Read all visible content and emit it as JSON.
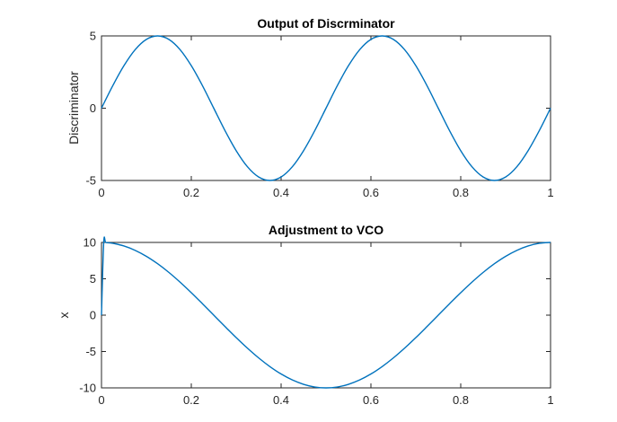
{
  "chart_data": [
    {
      "type": "line",
      "title": "Output of Discrminator",
      "xlabel": "",
      "ylabel": "Discriminator",
      "xlim": [
        0,
        1
      ],
      "ylim": [
        -5,
        5
      ],
      "xticks": [
        "0",
        "0.2",
        "0.4",
        "0.6",
        "0.8",
        "1"
      ],
      "yticks": [
        "-5",
        "0",
        "5"
      ],
      "xtick_values": [
        0,
        0.2,
        0.4,
        0.6,
        0.8,
        1
      ],
      "ytick_values": [
        -5,
        0,
        5
      ],
      "grid": false,
      "color": "#0072bd",
      "series": [
        {
          "x": [
            0,
            0.025,
            0.05,
            0.075,
            0.1,
            0.125,
            0.15,
            0.175,
            0.2,
            0.225,
            0.25,
            0.275,
            0.3,
            0.325,
            0.35,
            0.375,
            0.4,
            0.425,
            0.45,
            0.475,
            0.5,
            0.525,
            0.55,
            0.575,
            0.6,
            0.625,
            0.65,
            0.675,
            0.7,
            0.725,
            0.75,
            0.775,
            0.8,
            0.825,
            0.85,
            0.875,
            0.9,
            0.925,
            0.95,
            0.975,
            1
          ],
          "values": [
            0,
            1.55,
            2.94,
            4.05,
            4.76,
            5,
            4.76,
            4.05,
            2.94,
            1.55,
            0,
            -1.55,
            -2.94,
            -4.05,
            -4.76,
            -5,
            -4.76,
            -4.05,
            -2.94,
            -1.55,
            0,
            1.55,
            2.94,
            4.05,
            4.76,
            5,
            4.76,
            4.05,
            2.94,
            1.55,
            0,
            -1.55,
            -2.94,
            -4.05,
            -4.76,
            -5,
            -4.76,
            -4.05,
            -2.94,
            -1.55,
            0
          ]
        }
      ]
    },
    {
      "type": "line",
      "title": "Adjustment to VCO",
      "xlabel": "",
      "ylabel": "x",
      "xlim": [
        0,
        1
      ],
      "ylim": [
        -10,
        10
      ],
      "xticks": [
        "0",
        "0.2",
        "0.4",
        "0.6",
        "0.8",
        "1"
      ],
      "yticks": [
        "-10",
        "-5",
        "0",
        "5",
        "10"
      ],
      "xtick_values": [
        0,
        0.2,
        0.4,
        0.6,
        0.8,
        1
      ],
      "ytick_values": [
        -10,
        -5,
        0,
        5,
        10
      ],
      "grid": false,
      "color": "#0072bd",
      "series": [
        {
          "x": [
            0,
            0.005,
            0.01,
            0.025,
            0.05,
            0.075,
            0.1,
            0.125,
            0.15,
            0.175,
            0.2,
            0.225,
            0.25,
            0.275,
            0.3,
            0.325,
            0.35,
            0.375,
            0.4,
            0.425,
            0.45,
            0.475,
            0.5,
            0.525,
            0.55,
            0.575,
            0.6,
            0.625,
            0.65,
            0.675,
            0.7,
            0.725,
            0.75,
            0.775,
            0.8,
            0.825,
            0.85,
            0.875,
            0.9,
            0.925,
            0.95,
            0.975,
            1
          ],
          "values": [
            0,
            10,
            9.98,
            9.88,
            9.51,
            8.91,
            8.09,
            7.07,
            5.88,
            4.54,
            3.09,
            1.56,
            0,
            -1.56,
            -3.09,
            -4.54,
            -5.88,
            -7.07,
            -8.09,
            -8.91,
            -9.51,
            -9.88,
            -10,
            -9.88,
            -9.51,
            -8.91,
            -8.09,
            -7.07,
            -5.88,
            -4.54,
            -3.09,
            -1.56,
            0,
            1.56,
            3.09,
            4.54,
            5.88,
            7.07,
            8.09,
            8.91,
            9.51,
            9.88,
            10
          ]
        }
      ]
    }
  ]
}
